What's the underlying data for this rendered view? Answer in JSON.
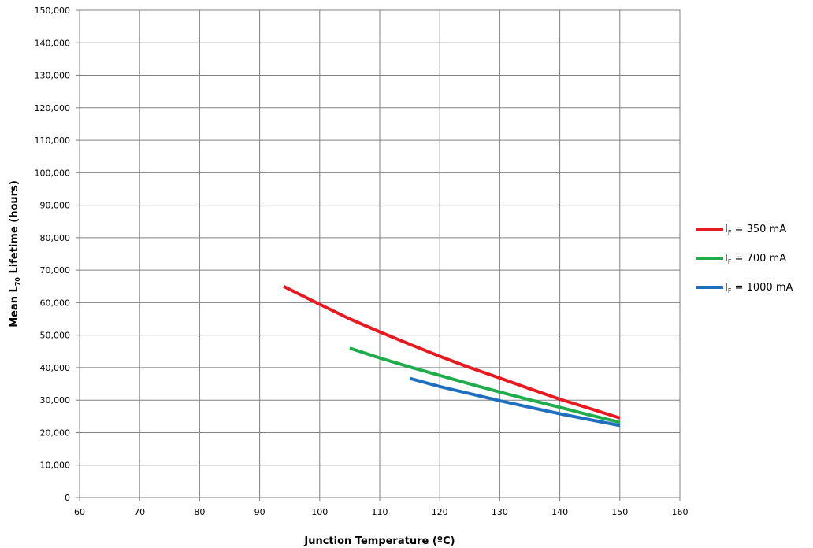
{
  "chart_data": {
    "type": "line",
    "title": "",
    "xlabel": "Junction Temperature (ºC)",
    "ylabel": "Mean L70 Lifetime (hours)",
    "ylabel_parts": {
      "pre": "Mean L",
      "sub": "70",
      "post": " Lifetime (hours)"
    },
    "xlim": [
      60,
      160
    ],
    "ylim": [
      0,
      150000
    ],
    "x_ticks": [
      "60",
      "70",
      "80",
      "90",
      "100",
      "110",
      "120",
      "130",
      "140",
      "150",
      "160"
    ],
    "y_ticks": [
      "0",
      "10,000",
      "20,000",
      "30,000",
      "40,000",
      "50,000",
      "60,000",
      "70,000",
      "80,000",
      "90,000",
      "100,000",
      "110,000",
      "120,000",
      "130,000",
      "140,000",
      "150,000"
    ],
    "grid": true,
    "legend_position": "right",
    "series": [
      {
        "name": "IF = 350 mA",
        "label_main": "I",
        "label_sub": "F",
        "label_rest": " = 350 mA",
        "color": "#e8191f",
        "x": [
          94,
          100,
          105,
          110,
          115,
          120,
          125,
          130,
          135,
          140,
          145,
          150
        ],
        "y": [
          65000,
          59500,
          55000,
          51000,
          47200,
          43500,
          40000,
          36800,
          33500,
          30300,
          27400,
          24500
        ]
      },
      {
        "name": "IF = 700 mA",
        "label_main": "I",
        "label_sub": "F",
        "label_rest": " = 700 mA",
        "color": "#1fad4b",
        "x": [
          105,
          110,
          115,
          120,
          125,
          130,
          135,
          140,
          145,
          150
        ],
        "y": [
          46000,
          43000,
          40200,
          37600,
          35000,
          32500,
          30100,
          27800,
          25400,
          23200
        ]
      },
      {
        "name": "IF = 1000 mA",
        "label_main": "I",
        "label_sub": "F",
        "label_rest": " = 1000 mA",
        "color": "#1f6fbf",
        "x": [
          115,
          120,
          125,
          130,
          135,
          140,
          145,
          150
        ],
        "y": [
          36700,
          34200,
          32000,
          29800,
          27800,
          25800,
          24000,
          22200
        ]
      }
    ]
  }
}
